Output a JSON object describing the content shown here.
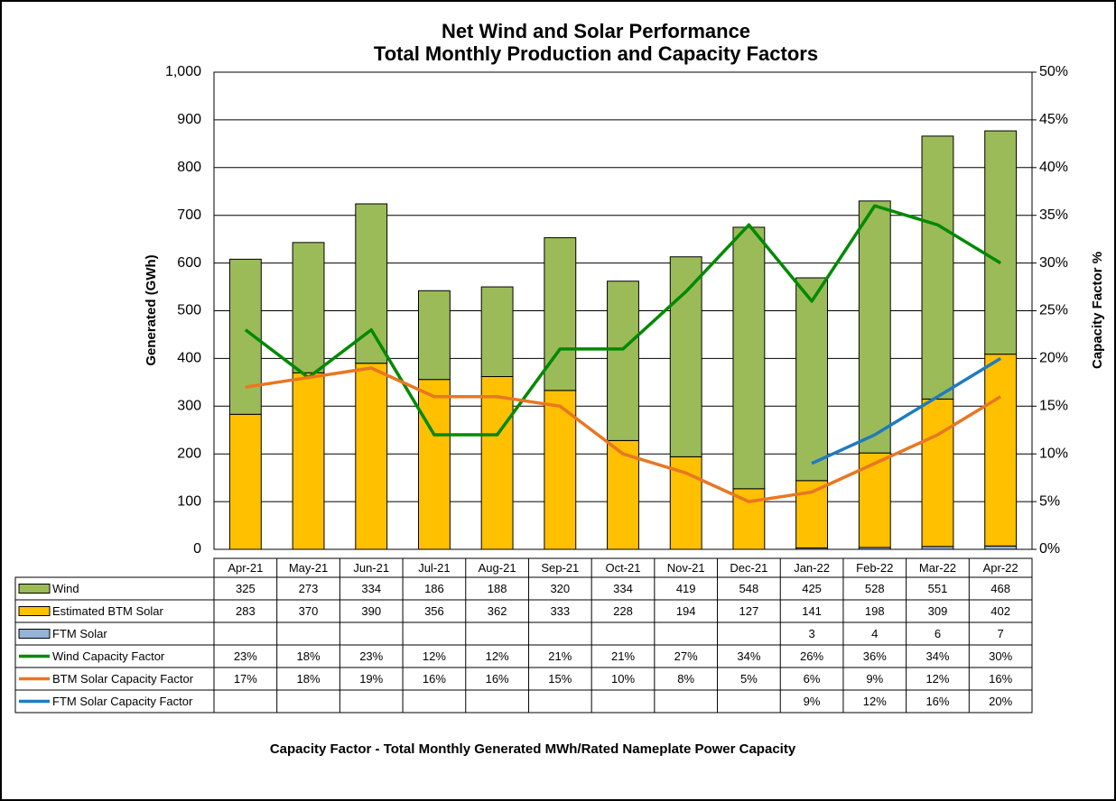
{
  "chart_data": {
    "type": "bar",
    "stacked": true,
    "title": "Net Wind and Solar Performance",
    "subtitle": "Total Monthly Production and Capacity Factors",
    "y_label": "Generated (GWh)",
    "y2_label": "Capacity Factor %",
    "note": "Capacity Factor  - Total Monthly Generated MWh/Rated Nameplate Power Capacity",
    "categories": [
      "Apr-21",
      "May-21",
      "Jun-21",
      "Jul-21",
      "Aug-21",
      "Sep-21",
      "Oct-21",
      "Nov-21",
      "Dec-21",
      "Jan-22",
      "Feb-22",
      "Mar-22",
      "Apr-22"
    ],
    "series": [
      {
        "name": "Wind",
        "type": "bar",
        "color": "#9bbb59",
        "values": [
          325,
          273,
          334,
          186,
          188,
          320,
          334,
          419,
          548,
          425,
          528,
          551,
          468
        ]
      },
      {
        "name": "Estimated BTM Solar",
        "type": "bar",
        "color": "#ffc000",
        "values": [
          283,
          370,
          390,
          356,
          362,
          333,
          228,
          194,
          127,
          141,
          198,
          309,
          402
        ]
      },
      {
        "name": "FTM Solar",
        "type": "bar",
        "color": "#95b3d7",
        "values": [
          null,
          null,
          null,
          null,
          null,
          null,
          null,
          null,
          null,
          3,
          4,
          6,
          7
        ]
      },
      {
        "name": "Wind Capacity Factor",
        "type": "line",
        "axis": "y2",
        "color": "#008a00",
        "values": [
          23,
          18,
          23,
          12,
          12,
          21,
          21,
          27,
          34,
          26,
          36,
          34,
          30
        ],
        "value_labels": [
          "23%",
          "18%",
          "23%",
          "12%",
          "12%",
          "21%",
          "21%",
          "27%",
          "34%",
          "26%",
          "36%",
          "34%",
          "30%"
        ]
      },
      {
        "name": "BTM Solar Capacity Factor",
        "type": "line",
        "axis": "y2",
        "color": "#e87722",
        "values": [
          17,
          18,
          19,
          16,
          16,
          15,
          10,
          8,
          5,
          6,
          9,
          12,
          16
        ],
        "value_labels": [
          "17%",
          "18%",
          "19%",
          "16%",
          "16%",
          "15%",
          "10%",
          "8%",
          "5%",
          "6%",
          "9%",
          "12%",
          "16%"
        ]
      },
      {
        "name": "FTM Solar Capacity Factor",
        "type": "line",
        "axis": "y2",
        "color": "#1f7bbf",
        "values": [
          null,
          null,
          null,
          null,
          null,
          null,
          null,
          null,
          null,
          9,
          12,
          16,
          20
        ],
        "value_labels": [
          null,
          null,
          null,
          null,
          null,
          null,
          null,
          null,
          null,
          "9%",
          "12%",
          "16%",
          "20%"
        ]
      }
    ],
    "ylim": [
      0,
      1000
    ],
    "yticks": [
      0,
      100,
      200,
      300,
      400,
      500,
      600,
      700,
      800,
      900,
      {
        "value": 1000,
        "label": "1,000"
      }
    ],
    "y2lim": [
      0,
      50
    ],
    "y2ticks": [
      {
        "value": 0,
        "label": "0%"
      },
      {
        "value": 5,
        "label": "5%"
      },
      {
        "value": 10,
        "label": "10%"
      },
      {
        "value": 15,
        "label": "15%"
      },
      {
        "value": 20,
        "label": "20%"
      },
      {
        "value": 25,
        "label": "25%"
      },
      {
        "value": 30,
        "label": "30%"
      },
      {
        "value": 35,
        "label": "35%"
      },
      {
        "value": 40,
        "label": "40%"
      },
      {
        "value": 45,
        "label": "45%"
      },
      {
        "value": 50,
        "label": "50%"
      }
    ],
    "grid": true
  }
}
